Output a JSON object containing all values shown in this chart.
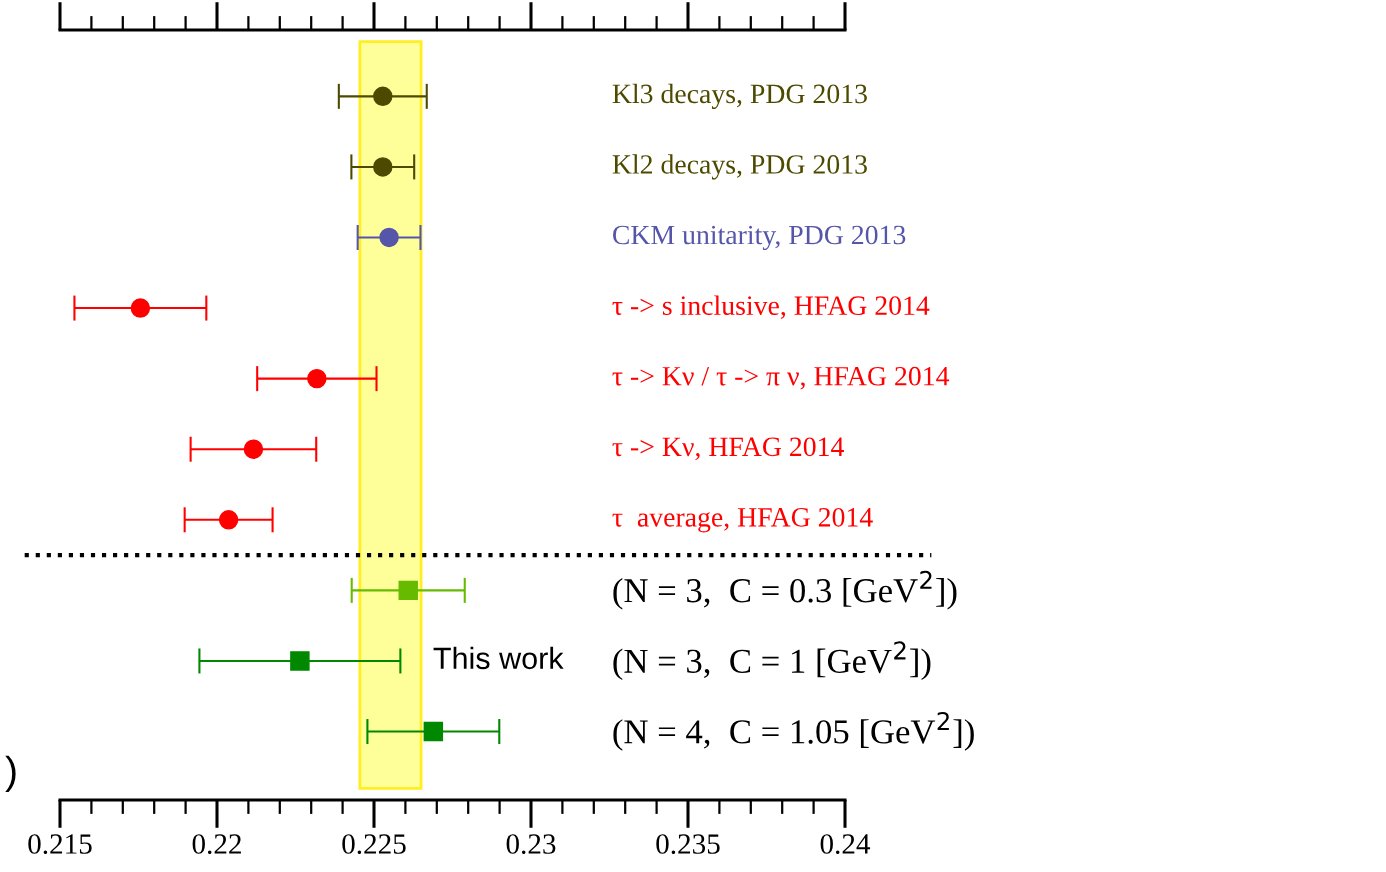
{
  "chart_data": {
    "type": "scatter",
    "orientation": "horizontal",
    "categories": [
      "Kl3 decays, PDG 2013",
      "Kl2 decays, PDG 2013",
      "CKM unitarity, PDG 2013",
      "τ -> s inclusive, HFAG 2014",
      "τ -> Kν / τ -> π ν, HFAG 2014",
      "τ -> Kν, HFAG 2014",
      "τ  average, HFAG 2014",
      "(N = 3,  C = 0.3 [GeV$^{2}$])",
      "(N = 3,  C = 1 [GeV$^{2}$])",
      "(N = 4,  C = 1.05 [GeV$^{2}$])"
    ],
    "series": [
      {
        "marker": "circle",
        "colors": [
          "#4d4a00",
          "#4d4a00",
          "#5555aa",
          "#ff0000",
          "#ff0000",
          "#ff0000",
          "#ff0000",
          null,
          null,
          null
        ],
        "values": [
          0.22528,
          0.22528,
          0.22548,
          0.21756,
          0.22318,
          0.22116,
          0.22037,
          null,
          null,
          null
        ],
        "errors": [
          0.0014,
          0.001,
          0.001,
          0.0021,
          0.0019,
          0.002,
          0.0014,
          null,
          null,
          null
        ]
      },
      {
        "marker": "square",
        "colors": [
          null,
          null,
          null,
          null,
          null,
          null,
          null,
          "#66bb00",
          "#008800",
          "#008800"
        ],
        "values": [
          null,
          null,
          null,
          null,
          null,
          null,
          null,
          0.22609,
          0.22264,
          0.22689
        ],
        "errors": [
          null,
          null,
          null,
          null,
          null,
          null,
          null,
          0.0018,
          0.0032,
          0.0021
        ]
      }
    ],
    "xlim": [
      0.215,
      0.24
    ],
    "xticks": [
      {
        "value": 0.215,
        "label": "0.215"
      },
      {
        "value": 0.216,
        "label": null
      },
      {
        "value": 0.217,
        "label": null
      },
      {
        "value": 0.218,
        "label": null
      },
      {
        "value": 0.219,
        "label": null
      },
      {
        "value": 0.22,
        "label": "0.22"
      },
      {
        "value": 0.221,
        "label": null
      },
      {
        "value": 0.222,
        "label": null
      },
      {
        "value": 0.223,
        "label": null
      },
      {
        "value": 0.224,
        "label": null
      },
      {
        "value": 0.225,
        "label": "0.225"
      },
      {
        "value": 0.226,
        "label": null
      },
      {
        "value": 0.227,
        "label": null
      },
      {
        "value": 0.228,
        "label": null
      },
      {
        "value": 0.229,
        "label": null
      },
      {
        "value": 0.23,
        "label": "0.23"
      },
      {
        "value": 0.231,
        "label": null
      },
      {
        "value": 0.232,
        "label": null
      },
      {
        "value": 0.233,
        "label": null
      },
      {
        "value": 0.234,
        "label": null
      },
      {
        "value": 0.235,
        "label": "0.235"
      },
      {
        "value": 0.236,
        "label": null
      },
      {
        "value": 0.237,
        "label": null
      },
      {
        "value": 0.238,
        "label": null
      },
      {
        "value": 0.239,
        "label": null
      },
      {
        "value": 0.24,
        "label": "0.24"
      }
    ],
    "bands": [
      {
        "axis": "x",
        "from": 0.22455,
        "to": 0.2265,
        "color": "#ffff99"
      }
    ],
    "annotations": [
      "This work",
      ")"
    ],
    "grid": false,
    "legend": false,
    "tick_labels": "x"
  }
}
